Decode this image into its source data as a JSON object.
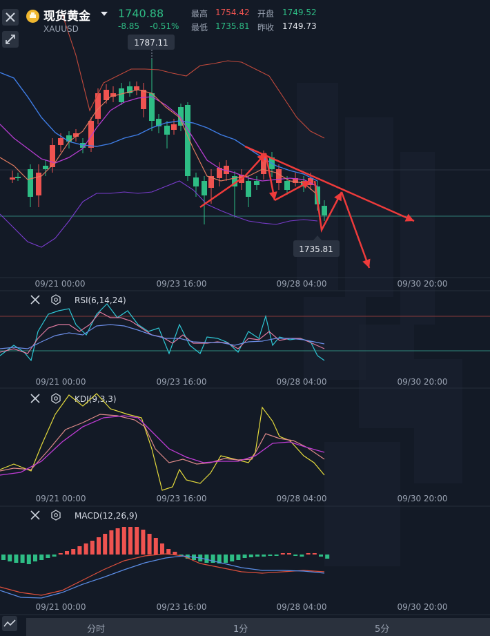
{
  "header": {
    "title": "现货黄金",
    "symbol": "XAUUSD",
    "price": "1740.88",
    "change": "-8.85",
    "change_pct": "-0.51%",
    "stats": {
      "high_label": "最高",
      "high_value": "1754.42",
      "open_label": "开盘",
      "open_value": "1749.52",
      "low_label": "最低",
      "low_value": "1735.81",
      "prev_close_label": "昨收",
      "prev_close_value": "1749.73"
    }
  },
  "main_chart": {
    "max_label": "1787.11",
    "min_label": "1735.81",
    "time_labels": [
      "09/21 00:00",
      "09/23 16:00",
      "09/28 04:00",
      "09/30 20:00"
    ]
  },
  "panels": {
    "rsi": {
      "label": "RSI(6,14,24)",
      "time_labels": [
        "09/21 00:00",
        "09/23 16:00",
        "09/28 04:00",
        "09/30 20:00"
      ]
    },
    "kdj": {
      "label": "KDJ(9,3,3)",
      "time_labels": [
        "09/21 00:00",
        "09/23 16:00",
        "09/28 04:00",
        "09/30 20:00"
      ]
    },
    "macd": {
      "label": "MACD(12,26,9)",
      "time_labels": [
        "09/21 00:00",
        "09/23 16:00",
        "09/28 04:00",
        "09/30 20:00"
      ]
    }
  },
  "bottom_tabs": [
    "分时",
    "1分",
    "5分"
  ],
  "colors": {
    "up": "#ef5350",
    "down": "#2ebd85",
    "background": "#131a26",
    "rsi1": "#2ec8d6",
    "rsi2": "#e07aa0",
    "rsi3": "#6b8de6",
    "kdj_k": "#e6dc3c",
    "kdj_d": "#e08a8a",
    "kdj_j": "#c03cd6",
    "macd_dif": "#5b8de6",
    "macd_dea": "#e0503c",
    "arrow": "#ef3b3b"
  },
  "icons": [
    "close-icon",
    "collapse-icon",
    "gold-coin-icon",
    "dropdown-caret-icon",
    "settings-icon",
    "chart-mode-icon"
  ]
}
